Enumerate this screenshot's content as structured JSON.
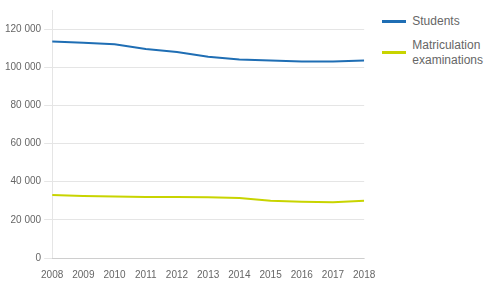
{
  "chart_data": {
    "type": "line",
    "x": [
      2008,
      2009,
      2010,
      2011,
      2012,
      2013,
      2014,
      2015,
      2016,
      2017,
      2018
    ],
    "series": [
      {
        "name": "Students",
        "color": "#1f6eb4",
        "values": [
          113500,
          112800,
          112000,
          109500,
          108000,
          105500,
          104000,
          103500,
          103000,
          103000,
          103500
        ]
      },
      {
        "name": "Matriculation\nexaminations",
        "color": "#c8d400",
        "values": [
          33000,
          32500,
          32200,
          32000,
          32000,
          31800,
          31500,
          30000,
          29500,
          29200,
          30000
        ]
      }
    ],
    "xlim": [
      2008,
      2018
    ],
    "xticks": [
      2008,
      2009,
      2010,
      2011,
      2012,
      2013,
      2014,
      2015,
      2016,
      2017,
      2018
    ],
    "ylim": [
      0,
      130000
    ],
    "yticks": [
      0,
      {
        "value": 20000,
        "label": "20 000"
      },
      {
        "value": 40000,
        "label": "40 000"
      },
      {
        "value": 60000,
        "label": "60 000"
      },
      {
        "value": 80000,
        "label": "80 000"
      },
      {
        "value": 100000,
        "label": "100 000"
      },
      {
        "value": 120000,
        "label": "120 000"
      }
    ],
    "grid": "y",
    "legend": "upper right"
  }
}
